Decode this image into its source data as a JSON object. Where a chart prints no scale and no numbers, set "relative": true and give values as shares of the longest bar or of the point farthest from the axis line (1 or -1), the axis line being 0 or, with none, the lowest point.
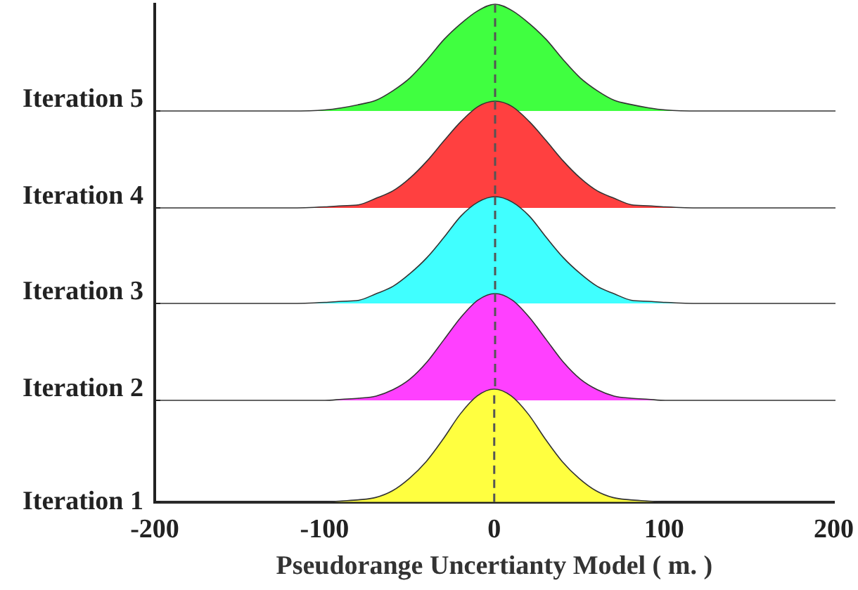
{
  "chart_data": [
    {
      "type": "area",
      "ylabel": "Iteration 5",
      "relative": true,
      "tick_labels": false,
      "x": [
        -200,
        -120,
        -100,
        -90,
        -80,
        -70,
        -60,
        -50,
        -40,
        -30,
        -20,
        -10,
        0,
        10,
        20,
        30,
        40,
        50,
        60,
        70,
        80,
        90,
        100,
        120,
        200
      ],
      "xlim": [
        -200,
        200
      ],
      "series": [
        {
          "color": "#40ff40",
          "values": [
            0,
            0,
            0.01,
            0.03,
            0.06,
            0.1,
            0.19,
            0.31,
            0.48,
            0.67,
            0.82,
            0.94,
            1,
            0.94,
            0.82,
            0.67,
            0.48,
            0.31,
            0.19,
            0.1,
            0.06,
            0.03,
            0.01,
            0,
            0
          ]
        }
      ],
      "ref_lines": [
        {
          "axis": "x",
          "value": 0,
          "line_style": "dashed",
          "color": "#555555"
        }
      ],
      "grid": false,
      "legend": false,
      "marker": "none",
      "line_style": "solid"
    },
    {
      "type": "area",
      "ylabel": "Iteration 4",
      "relative": true,
      "tick_labels": false,
      "x": [
        -200,
        -120,
        -100,
        -90,
        -80,
        -70,
        -60,
        -50,
        -40,
        -30,
        -20,
        -10,
        0,
        10,
        20,
        30,
        40,
        50,
        60,
        70,
        80,
        90,
        100,
        120,
        200
      ],
      "xlim": [
        -200,
        200
      ],
      "series": [
        {
          "color": "#ff4040",
          "values": [
            0,
            0,
            0.01,
            0.02,
            0.03,
            0.09,
            0.16,
            0.28,
            0.44,
            0.63,
            0.81,
            0.95,
            1,
            0.95,
            0.81,
            0.63,
            0.44,
            0.28,
            0.16,
            0.09,
            0.03,
            0.02,
            0.01,
            0,
            0
          ]
        }
      ],
      "ref_lines": [
        {
          "axis": "x",
          "value": 0,
          "line_style": "dashed",
          "color": "#555555"
        }
      ],
      "grid": false,
      "legend": false,
      "marker": "none",
      "line_style": "solid"
    },
    {
      "type": "area",
      "ylabel": "Iteration 3",
      "relative": true,
      "tick_labels": false,
      "x": [
        -200,
        -120,
        -100,
        -90,
        -80,
        -70,
        -60,
        -50,
        -40,
        -30,
        -20,
        -10,
        0,
        10,
        20,
        30,
        40,
        50,
        60,
        70,
        80,
        90,
        100,
        120,
        200
      ],
      "xlim": [
        -200,
        200
      ],
      "series": [
        {
          "color": "#40ffff",
          "values": [
            0,
            0,
            0.01,
            0.02,
            0.03,
            0.09,
            0.16,
            0.28,
            0.43,
            0.62,
            0.82,
            0.95,
            1,
            0.95,
            0.82,
            0.62,
            0.43,
            0.28,
            0.16,
            0.09,
            0.03,
            0.02,
            0.01,
            0,
            0
          ]
        }
      ],
      "ref_lines": [
        {
          "axis": "x",
          "value": 0,
          "line_style": "dashed",
          "color": "#555555"
        }
      ],
      "grid": false,
      "legend": false,
      "marker": "none",
      "line_style": "solid"
    },
    {
      "type": "area",
      "ylabel": "Iteration 2",
      "relative": true,
      "tick_labels": false,
      "x": [
        -200,
        -120,
        -100,
        -90,
        -80,
        -70,
        -60,
        -50,
        -40,
        -30,
        -20,
        -10,
        0,
        10,
        20,
        30,
        40,
        50,
        60,
        70,
        80,
        90,
        100,
        120,
        200
      ],
      "xlim": [
        -200,
        200
      ],
      "series": [
        {
          "color": "#ff40ff",
          "values": [
            0,
            0,
            0,
            0.01,
            0.02,
            0.04,
            0.1,
            0.2,
            0.36,
            0.57,
            0.78,
            0.94,
            1,
            0.94,
            0.78,
            0.57,
            0.36,
            0.2,
            0.1,
            0.04,
            0.02,
            0.01,
            0,
            0,
            0
          ]
        }
      ],
      "ref_lines": [
        {
          "axis": "x",
          "value": 0,
          "line_style": "dashed",
          "color": "#555555"
        }
      ],
      "grid": false,
      "legend": false,
      "marker": "none",
      "line_style": "solid"
    },
    {
      "type": "area",
      "ylabel": "Iteration 1",
      "xlabel": "Pseudorange Uncertianty Model ( m. )",
      "relative": true,
      "tick_labels": "x",
      "x": [
        -200,
        -120,
        -100,
        -90,
        -80,
        -70,
        -60,
        -50,
        -40,
        -30,
        -20,
        -10,
        0,
        10,
        20,
        30,
        40,
        50,
        60,
        70,
        80,
        90,
        100,
        120,
        200
      ],
      "xlim": [
        -200,
        200
      ],
      "xticks": [
        -200,
        -100,
        0,
        100,
        200
      ],
      "series": [
        {
          "color": "#ffff40",
          "values": [
            0,
            0,
            0,
            0.01,
            0.02,
            0.04,
            0.1,
            0.21,
            0.36,
            0.56,
            0.78,
            0.94,
            1,
            0.94,
            0.78,
            0.56,
            0.36,
            0.21,
            0.1,
            0.04,
            0.02,
            0.01,
            0,
            0,
            0
          ]
        }
      ],
      "ref_lines": [
        {
          "axis": "x",
          "value": 0,
          "line_style": "dashed",
          "color": "#555555"
        }
      ],
      "grid": false,
      "legend": false,
      "marker": "none",
      "line_style": "solid"
    }
  ]
}
